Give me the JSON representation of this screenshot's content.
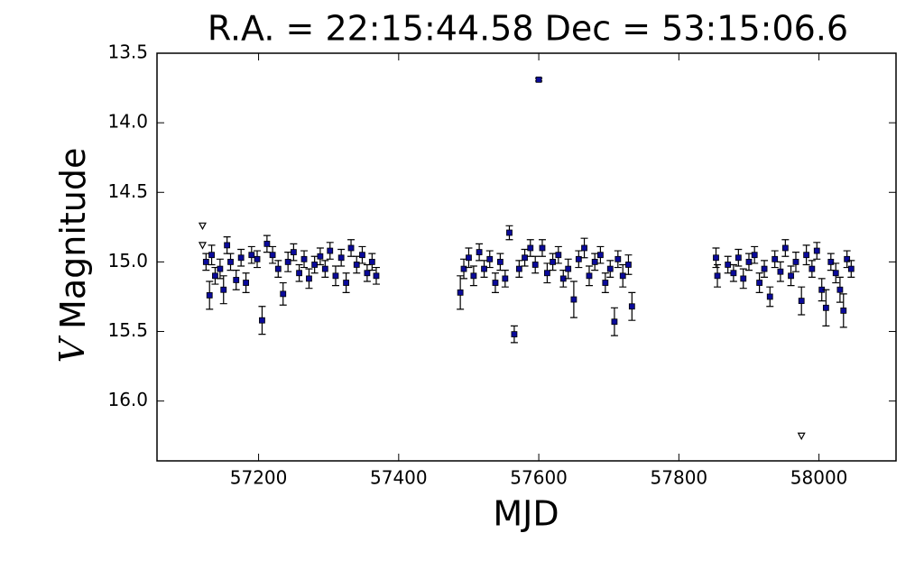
{
  "chart_data": {
    "type": "scatter",
    "title": "R.A. = 22:15:44.58   Dec = 53:15:06.6",
    "xlabel": "MJD",
    "ylabel_var": "V",
    "ylabel": "Magnitude",
    "xlim": [
      57055,
      58110
    ],
    "ylim": [
      13.5,
      16.43
    ],
    "y_inverted": true,
    "xticks": [
      57200,
      57400,
      57600,
      57800,
      58000
    ],
    "yticks": [
      13.5,
      {
        "value": 14,
        "label": "14.0"
      },
      14.5,
      {
        "value": 15,
        "label": "15.0"
      },
      15.5,
      {
        "value": 16,
        "label": "16.0"
      }
    ],
    "series": [
      {
        "color": "#0a0a9a",
        "marker": "square",
        "x": [
          57125,
          57130,
          57133,
          57138,
          57145,
          57150,
          57155,
          57160,
          57168,
          57175,
          57182,
          57190,
          57198,
          57205,
          57212,
          57220,
          57228,
          57235,
          57242,
          57250,
          57258,
          57265,
          57272,
          57280,
          57288,
          57295,
          57302,
          57310,
          57318,
          57325,
          57332,
          57340,
          57348,
          57355,
          57362,
          57368,
          57488,
          57493,
          57500,
          57507,
          57515,
          57522,
          57530,
          57538,
          57545,
          57552,
          57558,
          57565,
          57572,
          57580,
          57588,
          57595,
          57600,
          57605,
          57612,
          57620,
          57628,
          57635,
          57642,
          57650,
          57657,
          57665,
          57672,
          57680,
          57688,
          57695,
          57702,
          57708,
          57713,
          57720,
          57728,
          57733,
          57853,
          57855,
          57870,
          57878,
          57885,
          57892,
          57900,
          57908,
          57915,
          57922,
          57930,
          57937,
          57945,
          57952,
          57960,
          57967,
          57975,
          57982,
          57990,
          57997,
          58004,
          58010,
          58017,
          58024,
          58030,
          58035,
          58040,
          58046
        ],
        "values": [
          15.0,
          15.24,
          14.95,
          15.1,
          15.05,
          15.2,
          14.88,
          15.0,
          15.13,
          14.97,
          15.15,
          14.95,
          14.98,
          15.42,
          14.87,
          14.95,
          15.05,
          15.23,
          15.0,
          14.93,
          15.08,
          14.98,
          15.12,
          15.02,
          14.96,
          15.05,
          14.92,
          15.1,
          14.97,
          15.15,
          14.9,
          15.02,
          14.95,
          15.08,
          15.0,
          15.1,
          15.22,
          15.05,
          14.97,
          15.1,
          14.93,
          15.05,
          14.98,
          15.15,
          15.0,
          15.12,
          14.79,
          15.52,
          15.05,
          14.97,
          14.9,
          15.02,
          13.69,
          14.9,
          15.08,
          15.0,
          14.95,
          15.12,
          15.05,
          15.27,
          14.98,
          14.9,
          15.1,
          15.0,
          14.95,
          15.15,
          15.05,
          15.43,
          14.98,
          15.1,
          15.02,
          15.32,
          14.97,
          15.1,
          15.02,
          15.08,
          14.97,
          15.12,
          15.0,
          14.95,
          15.15,
          15.05,
          15.25,
          14.98,
          15.07,
          14.9,
          15.1,
          15.0,
          15.28,
          14.95,
          15.05,
          14.92,
          15.2,
          15.33,
          15.0,
          15.08,
          15.2,
          15.35,
          14.98,
          15.05
        ],
        "errors": [
          0.06,
          0.1,
          0.07,
          0.06,
          0.07,
          0.1,
          0.06,
          0.06,
          0.07,
          0.06,
          0.07,
          0.06,
          0.06,
          0.1,
          0.06,
          0.06,
          0.06,
          0.08,
          0.07,
          0.06,
          0.06,
          0.06,
          0.07,
          0.06,
          0.06,
          0.06,
          0.06,
          0.07,
          0.06,
          0.07,
          0.06,
          0.06,
          0.06,
          0.06,
          0.06,
          0.06,
          0.12,
          0.07,
          0.07,
          0.07,
          0.06,
          0.06,
          0.06,
          0.07,
          0.06,
          0.06,
          0.05,
          0.06,
          0.06,
          0.06,
          0.06,
          0.06,
          0.01,
          0.06,
          0.07,
          0.06,
          0.06,
          0.06,
          0.07,
          0.13,
          0.06,
          0.07,
          0.07,
          0.06,
          0.06,
          0.07,
          0.06,
          0.1,
          0.06,
          0.08,
          0.07,
          0.1,
          0.07,
          0.08,
          0.06,
          0.06,
          0.06,
          0.07,
          0.06,
          0.06,
          0.07,
          0.06,
          0.07,
          0.06,
          0.07,
          0.06,
          0.07,
          0.07,
          0.1,
          0.07,
          0.06,
          0.06,
          0.08,
          0.13,
          0.06,
          0.07,
          0.09,
          0.12,
          0.06,
          0.06
        ]
      },
      {
        "color": "#ffffff",
        "marker": "triangle-down",
        "x": [
          57120,
          57120,
          57975
        ],
        "values": [
          14.74,
          14.88,
          16.25
        ]
      }
    ]
  }
}
